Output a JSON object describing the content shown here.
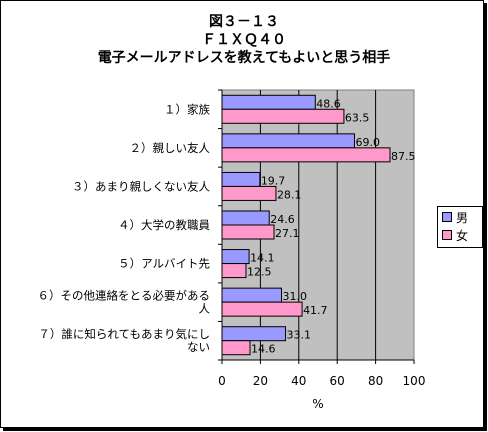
{
  "chart_data": {
    "type": "bar",
    "orientation": "horizontal",
    "title": [
      "図３－１３",
      "Ｆ１ＸＱ４０",
      "電子メールアドレスを教えてもよいと思う相手"
    ],
    "categories": [
      [
        "１）家族"
      ],
      [
        "２）親しい友人"
      ],
      [
        "３）あまり親しくない友人"
      ],
      [
        "４）大学の教職員"
      ],
      [
        "５）アルバイト先"
      ],
      [
        "６）その他連絡をとる必要がある",
        "人"
      ],
      [
        "７）誰に知られてもあまり気にし",
        "ない"
      ]
    ],
    "series": [
      {
        "name": "男",
        "color": "#9999ff",
        "values": [
          48.6,
          69.0,
          19.7,
          24.6,
          14.1,
          31.0,
          33.1
        ],
        "labels": [
          "48.6",
          "69.0",
          "19.7",
          "24.6",
          "14.1",
          "31.0",
          "33.1"
        ]
      },
      {
        "name": "女",
        "color": "#ff99cc",
        "values": [
          63.5,
          87.5,
          28.1,
          27.1,
          12.5,
          41.7,
          14.6
        ],
        "labels": [
          "63.5",
          "87.5",
          "28.1",
          "27.1",
          "12.5",
          "41.7",
          "14.6"
        ]
      }
    ],
    "xticks": [
      "0",
      "20",
      "40",
      "60",
      "80",
      "100"
    ],
    "xlim": [
      0,
      100
    ],
    "xlabel": "%",
    "grid": true,
    "plot_background": "#c0c0c0",
    "legend_position": "right"
  }
}
